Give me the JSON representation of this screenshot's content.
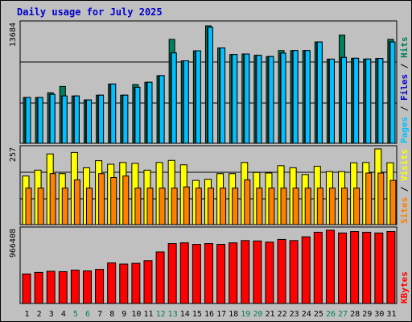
{
  "title": "Daily usage for July 2025",
  "colors": {
    "hits": "#00805c",
    "files": "#00c0ff",
    "pages": "#00c0ff",
    "visits": "#ffff00",
    "sites": "#ff8000",
    "kbytes": "#ff0000",
    "weekend_label": "#00805c",
    "weekday_label": "#000000"
  },
  "chart_data": [
    {
      "type": "bar",
      "name": "hits-files-pages",
      "categories": [
        "1",
        "2",
        "3",
        "4",
        "5",
        "6",
        "7",
        "8",
        "9",
        "10",
        "11",
        "12",
        "13",
        "14",
        "15",
        "16",
        "17",
        "18",
        "19",
        "20",
        "21",
        "22",
        "23",
        "24",
        "25",
        "26",
        "27",
        "28",
        "29",
        "30",
        "31"
      ],
      "weekend_days": [
        "5",
        "6",
        "12",
        "13",
        "19",
        "20",
        "26",
        "27"
      ],
      "ymax_label": "13684",
      "ymax": 13684,
      "legend": [
        "Pages",
        "Files",
        "Hits"
      ],
      "series": [
        {
          "name": "Hits",
          "values": [
            5330,
            5330,
            5885,
            6620,
            5510,
            5050,
            5600,
            6900,
            5600,
            6840,
            7100,
            7880,
            12100,
            9600,
            10770,
            13684,
            11100,
            10340,
            10400,
            10240,
            10100,
            10800,
            10800,
            10800,
            11800,
            9800,
            12600,
            9900,
            9810,
            9880,
            12100
          ]
        },
        {
          "name": "Files",
          "values": [
            5330,
            5330,
            5700,
            5510,
            5510,
            5050,
            5600,
            6900,
            5600,
            6520,
            7100,
            7880,
            10520,
            9600,
            10770,
            13500,
            11100,
            10340,
            10400,
            10240,
            10100,
            10500,
            10800,
            10800,
            11800,
            9800,
            10000,
            9900,
            9810,
            9880,
            11800
          ]
        },
        {
          "name": "Pages",
          "values": [
            5330,
            5330,
            5700,
            5510,
            5510,
            5050,
            5600,
            6900,
            5600,
            6520,
            7100,
            7880,
            10520,
            9600,
            10770,
            13500,
            11100,
            10340,
            10400,
            10240,
            10100,
            10500,
            10800,
            10800,
            11800,
            9800,
            10000,
            9900,
            9810,
            9880,
            11800
          ]
        }
      ]
    },
    {
      "type": "bar",
      "name": "visits-sites",
      "ymax_label": "257",
      "ymax": 257,
      "legend": [
        "Sites",
        "Visits"
      ],
      "series": [
        {
          "name": "Visits",
          "values": [
            165,
            185,
            240,
            173,
            245,
            193,
            217,
            205,
            211,
            208,
            185,
            211,
            218,
            203,
            150,
            154,
            173,
            173,
            211,
            177,
            175,
            200,
            193,
            170,
            198,
            180,
            180,
            210,
            211,
            257,
            210
          ]
        },
        {
          "name": "Sites",
          "values": [
            124,
            124,
            173,
            124,
            152,
            124,
            173,
            160,
            165,
            124,
            124,
            124,
            124,
            128,
            124,
            124,
            124,
            124,
            152,
            124,
            124,
            124,
            124,
            124,
            124,
            124,
            124,
            124,
            175,
            175,
            150
          ]
        }
      ]
    },
    {
      "type": "bar",
      "name": "kbytes",
      "ymax_label": "966408",
      "ymax": 966408,
      "legend": [
        "KBytes"
      ],
      "series": [
        {
          "name": "KBytes",
          "values": [
            390000,
            410000,
            425000,
            420000,
            440000,
            430000,
            450000,
            535000,
            520000,
            530000,
            565000,
            680000,
            790000,
            800000,
            780000,
            790000,
            780000,
            800000,
            830000,
            825000,
            810000,
            845000,
            830000,
            880000,
            940000,
            966408,
            930000,
            950000,
            940000,
            930000,
            950000
          ]
        }
      ]
    }
  ]
}
